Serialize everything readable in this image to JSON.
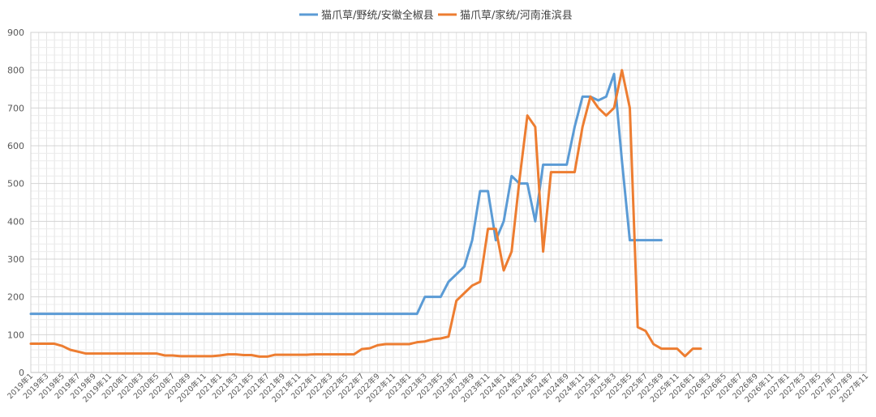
{
  "chart_data": {
    "type": "line",
    "title": "",
    "xlabel": "",
    "ylabel": "",
    "ylim": [
      0,
      900
    ],
    "yticks": [
      0,
      100,
      200,
      300,
      400,
      500,
      600,
      700,
      800,
      900
    ],
    "grid": true,
    "legend_position": "top-center",
    "x_start": {
      "year": 2019,
      "month": 1
    },
    "x_end": {
      "year": 2027,
      "month": 11
    },
    "xtick_labels": [
      "2019年1",
      "2019年3",
      "2019年5",
      "2019年7",
      "2019年9",
      "2019年11",
      "2020年1",
      "2020年3",
      "2020年5",
      "2020年7",
      "2020年9",
      "2020年11",
      "2021年1",
      "2021年3",
      "2021年5",
      "2021年7",
      "2021年9",
      "2021年11",
      "2022年1",
      "2022年3",
      "2022年5",
      "2022年7",
      "2022年9",
      "2022年11",
      "2023年1",
      "2023年3",
      "2023年5",
      "2023年7",
      "2023年9",
      "2023年11",
      "2024年1",
      "2024年3",
      "2024年5",
      "2024年7",
      "2024年9",
      "2024年11",
      "2025年1",
      "2025年3",
      "2025年5",
      "2025年7",
      "2025年9",
      "2025年11",
      "2026年1",
      "2026年3",
      "2026年5",
      "2026年7",
      "2026年9",
      "2026年11",
      "2027年1",
      "2027年3",
      "2027年5",
      "2027年7",
      "2027年9",
      "2027年11"
    ],
    "series": [
      {
        "name": "猫爪草/野统/安徽全椒县",
        "color": "#5B9BD5",
        "points": [
          [
            "2019-01",
            155
          ],
          [
            "2023-02",
            155
          ],
          [
            "2023-03",
            200
          ],
          [
            "2023-04",
            200
          ],
          [
            "2023-05",
            200
          ],
          [
            "2023-06",
            240
          ],
          [
            "2023-07",
            260
          ],
          [
            "2023-08",
            280
          ],
          [
            "2023-09",
            350
          ],
          [
            "2023-10",
            480
          ],
          [
            "2023-11",
            480
          ],
          [
            "2023-12",
            350
          ],
          [
            "2024-01",
            400
          ],
          [
            "2024-02",
            520
          ],
          [
            "2024-03",
            500
          ],
          [
            "2024-04",
            500
          ],
          [
            "2024-05",
            400
          ],
          [
            "2024-06",
            550
          ],
          [
            "2024-07",
            550
          ],
          [
            "2024-08",
            550
          ],
          [
            "2024-09",
            550
          ],
          [
            "2024-10",
            650
          ],
          [
            "2024-11",
            730
          ],
          [
            "2024-12",
            730
          ],
          [
            "2025-01",
            720
          ],
          [
            "2025-02",
            730
          ],
          [
            "2025-03",
            790
          ],
          [
            "2025-04",
            560
          ],
          [
            "2025-05",
            350
          ],
          [
            "2025-06",
            350
          ],
          [
            "2025-07",
            350
          ],
          [
            "2025-08",
            350
          ],
          [
            "2025-09",
            350
          ]
        ]
      },
      {
        "name": "猫爪草/家统/河南淮滨县",
        "color": "#ED7D31",
        "points": [
          [
            "2019-01",
            76
          ],
          [
            "2019-02",
            76
          ],
          [
            "2019-03",
            76
          ],
          [
            "2019-04",
            76
          ],
          [
            "2019-05",
            70
          ],
          [
            "2019-06",
            60
          ],
          [
            "2019-07",
            55
          ],
          [
            "2019-08",
            50
          ],
          [
            "2019-09",
            50
          ],
          [
            "2019-10",
            50
          ],
          [
            "2019-11",
            50
          ],
          [
            "2019-12",
            50
          ],
          [
            "2020-01",
            50
          ],
          [
            "2020-02",
            50
          ],
          [
            "2020-03",
            50
          ],
          [
            "2020-04",
            50
          ],
          [
            "2020-05",
            50
          ],
          [
            "2020-06",
            45
          ],
          [
            "2020-07",
            45
          ],
          [
            "2020-08",
            43
          ],
          [
            "2020-09",
            43
          ],
          [
            "2020-10",
            43
          ],
          [
            "2020-11",
            43
          ],
          [
            "2020-12",
            43
          ],
          [
            "2021-01",
            45
          ],
          [
            "2021-02",
            48
          ],
          [
            "2021-03",
            48
          ],
          [
            "2021-04",
            46
          ],
          [
            "2021-05",
            46
          ],
          [
            "2021-06",
            42
          ],
          [
            "2021-07",
            42
          ],
          [
            "2021-08",
            47
          ],
          [
            "2021-09",
            47
          ],
          [
            "2021-10",
            47
          ],
          [
            "2021-11",
            47
          ],
          [
            "2021-12",
            47
          ],
          [
            "2022-01",
            48
          ],
          [
            "2022-02",
            48
          ],
          [
            "2022-03",
            48
          ],
          [
            "2022-04",
            48
          ],
          [
            "2022-05",
            48
          ],
          [
            "2022-06",
            48
          ],
          [
            "2022-07",
            62
          ],
          [
            "2022-08",
            64
          ],
          [
            "2022-09",
            72
          ],
          [
            "2022-10",
            75
          ],
          [
            "2022-11",
            75
          ],
          [
            "2022-12",
            75
          ],
          [
            "2023-01",
            75
          ],
          [
            "2023-02",
            80
          ],
          [
            "2023-03",
            82
          ],
          [
            "2023-04",
            88
          ],
          [
            "2023-05",
            90
          ],
          [
            "2023-06",
            95
          ],
          [
            "2023-07",
            190
          ],
          [
            "2023-08",
            210
          ],
          [
            "2023-09",
            230
          ],
          [
            "2023-10",
            240
          ],
          [
            "2023-11",
            380
          ],
          [
            "2023-12",
            380
          ],
          [
            "2024-01",
            270
          ],
          [
            "2024-02",
            320
          ],
          [
            "2024-03",
            510
          ],
          [
            "2024-04",
            680
          ],
          [
            "2024-05",
            650
          ],
          [
            "2024-06",
            320
          ],
          [
            "2024-07",
            530
          ],
          [
            "2024-08",
            530
          ],
          [
            "2024-09",
            530
          ],
          [
            "2024-10",
            530
          ],
          [
            "2024-11",
            650
          ],
          [
            "2024-12",
            730
          ],
          [
            "2025-01",
            700
          ],
          [
            "2025-02",
            680
          ],
          [
            "2025-03",
            700
          ],
          [
            "2025-04",
            800
          ],
          [
            "2025-05",
            700
          ],
          [
            "2025-06",
            120
          ],
          [
            "2025-07",
            110
          ],
          [
            "2025-08",
            75
          ],
          [
            "2025-09",
            63
          ],
          [
            "2025-10",
            63
          ],
          [
            "2025-11",
            63
          ],
          [
            "2025-12",
            43
          ],
          [
            "2026-01",
            63
          ],
          [
            "2026-02",
            63
          ]
        ]
      }
    ]
  }
}
